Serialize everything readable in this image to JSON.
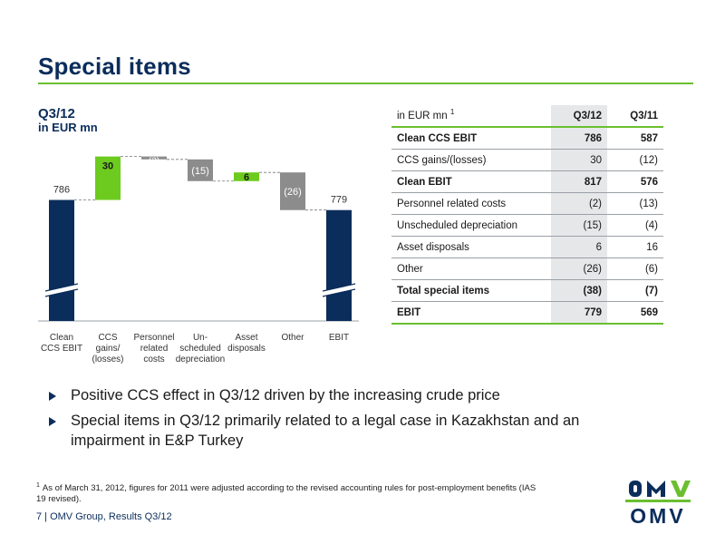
{
  "title": "Special items",
  "chart": {
    "heading": "Q3/12",
    "subheading": "in EUR mn"
  },
  "chart_data": {
    "type": "bar",
    "subtype": "waterfall",
    "title": "Q3/12",
    "ylabel": "in EUR mn",
    "categories": [
      "Clean CCS EBIT",
      "CCS gains/ (losses)",
      "Personnel related costs",
      "Un-scheduled depreciation",
      "Asset disposals",
      "Other",
      "EBIT"
    ],
    "tick_lines": [
      [
        "Clean",
        "CCS EBIT"
      ],
      [
        "CCS",
        "gains/",
        "(losses)"
      ],
      [
        "Personnel",
        "related",
        "costs"
      ],
      [
        "Un-",
        "scheduled",
        "depreciation"
      ],
      [
        "Asset",
        "disposals"
      ],
      [
        "Other"
      ],
      [
        "EBIT"
      ]
    ],
    "values": [
      786,
      30,
      -2,
      -15,
      6,
      -26,
      779
    ],
    "bar_kinds": [
      "total",
      "increase",
      "decrease",
      "decrease",
      "increase",
      "decrease",
      "total"
    ],
    "data_labels": [
      "786",
      "30",
      "(2)",
      "(15)",
      "6",
      "(26)",
      "779"
    ],
    "axis_break": true,
    "colors": {
      "total": "#0b2d5b",
      "increase": "#6ccb1e",
      "decrease": "#8c8c8c"
    }
  },
  "table": {
    "header": {
      "label": "in EUR mn",
      "sup": "1",
      "col1": "Q3/12",
      "col2": "Q3/11"
    },
    "rows": [
      {
        "label": "Clean CCS EBIT",
        "q3_12": "786",
        "q3_11": "587",
        "bold": true
      },
      {
        "label": "CCS gains/(losses)",
        "q3_12": "30",
        "q3_11": "(12)",
        "bold": false
      },
      {
        "label": "Clean EBIT",
        "q3_12": "817",
        "q3_11": "576",
        "bold": true
      },
      {
        "label": "Personnel related costs",
        "q3_12": "(2)",
        "q3_11": "(13)",
        "bold": false
      },
      {
        "label": "Unscheduled depreciation",
        "q3_12": "(15)",
        "q3_11": "(4)",
        "bold": false
      },
      {
        "label": "Asset disposals",
        "q3_12": "6",
        "q3_11": "16",
        "bold": false
      },
      {
        "label": "Other",
        "q3_12": "(26)",
        "q3_11": "(6)",
        "bold": false
      },
      {
        "label": "Total special items",
        "q3_12": "(38)",
        "q3_11": "(7)",
        "bold": true
      },
      {
        "label": "EBIT",
        "q3_12": "779",
        "q3_11": "569",
        "bold": true
      }
    ]
  },
  "bullets": [
    "Positive CCS effect in Q3/12 driven by the increasing crude price",
    "Special items in Q3/12 primarily related to a legal case in Kazakhstan and an impairment in E&P Turkey"
  ],
  "footnote": {
    "marker": "1",
    "text": "As of March 31, 2012, figures for 2011 were adjusted according to the revised accounting rules for post-employment benefits (IAS 19 revised)."
  },
  "footer": "7 | OMV Group, Results Q3/12",
  "logo": {
    "text": "OMV",
    "color": "#0b2d5b",
    "accent": "#6abf2f"
  }
}
